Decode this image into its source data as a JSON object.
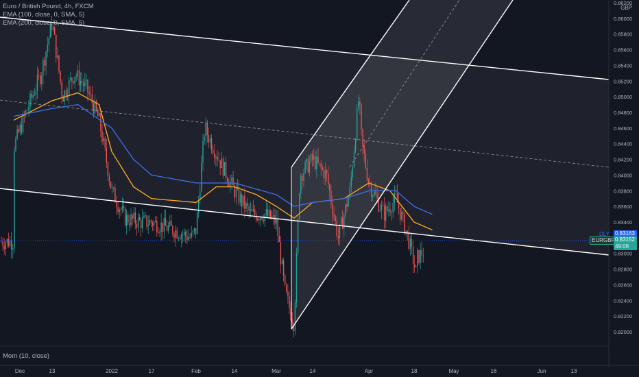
{
  "legend": {
    "symbol": "Euro / British Pound, 4h, FXCM",
    "ema100": "EMA (100, close, 0, SMA, 5)",
    "ema200": "EMA (200, close, 0, SMA, 5)"
  },
  "momentum_label": "Mom (10, close)",
  "currency_label": "GBP",
  "price_tags": {
    "dly_label": "DLY",
    "dly_price": "0.83163",
    "symbol": "EURGBP",
    "last_price": "0.83152",
    "countdown": "49:08"
  },
  "colors": {
    "background": "#131722",
    "ema100": "#f5a623",
    "ema200": "#3d6be0",
    "candle_up": "#26a69a",
    "candle_down": "#ef5350",
    "channel": "#ffffff",
    "last_price_line": "#2962ff"
  },
  "chart_data": {
    "type": "candlestick",
    "title": "Euro / British Pound, 4h, FXCM",
    "x_ticks": [
      "Dec",
      "13",
      "2022",
      "17",
      "Feb",
      "14",
      "Mar",
      "14",
      "Apr",
      "18",
      "May",
      "16",
      "Jun",
      "13"
    ],
    "y_ticks": [
      "0.86200",
      "0.86000",
      "0.85800",
      "0.85600",
      "0.85400",
      "0.85200",
      "0.85000",
      "0.84800",
      "0.84600",
      "0.84400",
      "0.84200",
      "0.84000",
      "0.83800",
      "0.83600",
      "0.83400",
      "0.83200",
      "0.83000",
      "0.82800",
      "0.82600",
      "0.82400",
      "0.82200",
      "0.82000"
    ],
    "ylim": [
      0.8195,
      0.8622
    ],
    "price_keypoints": [
      {
        "x": "Dec",
        "y": 0.8436
      },
      {
        "x": "Dec 6",
        "y": 0.849
      },
      {
        "x": "Dec 10",
        "y": 0.853
      },
      {
        "x": "13",
        "y": 0.8595
      },
      {
        "x": "Dec 17",
        "y": 0.85
      },
      {
        "x": "Dec 21",
        "y": 0.853
      },
      {
        "x": "Dec 25",
        "y": 0.851
      },
      {
        "x": "Dec 29",
        "y": 0.847
      },
      {
        "x": "2022",
        "y": 0.838
      },
      {
        "x": "Jan 7",
        "y": 0.8345
      },
      {
        "x": "Jan 12",
        "y": 0.834
      },
      {
        "x": "17",
        "y": 0.834
      },
      {
        "x": "Jan 24",
        "y": 0.833
      },
      {
        "x": "Jan 30",
        "y": 0.832
      },
      {
        "x": "Feb",
        "y": 0.833
      },
      {
        "x": "Feb 4",
        "y": 0.846
      },
      {
        "x": "Feb 9",
        "y": 0.842
      },
      {
        "x": "14",
        "y": 0.838
      },
      {
        "x": "Feb 20",
        "y": 0.835
      },
      {
        "x": "Feb 25",
        "y": 0.835
      },
      {
        "x": "Mar",
        "y": 0.834
      },
      {
        "x": "Mar 4",
        "y": 0.825
      },
      {
        "x": "Mar 7",
        "y": 0.821
      },
      {
        "x": "Mar 9",
        "y": 0.84
      },
      {
        "x": "14",
        "y": 0.842
      },
      {
        "x": "Mar 18",
        "y": 0.84
      },
      {
        "x": "Mar 22",
        "y": 0.832
      },
      {
        "x": "Mar 26",
        "y": 0.838
      },
      {
        "x": "Mar 29",
        "y": 0.85
      },
      {
        "x": "Mar 30",
        "y": 0.844
      },
      {
        "x": "Apr",
        "y": 0.839
      },
      {
        "x": "Apr 6",
        "y": 0.835
      },
      {
        "x": "Apr 10",
        "y": 0.837
      },
      {
        "x": "Apr 14",
        "y": 0.832
      },
      {
        "x": "Apr 17",
        "y": 0.827
      },
      {
        "x": "18",
        "y": 0.829
      },
      {
        "x": "Apr 22",
        "y": 0.8315
      }
    ],
    "series": [
      {
        "name": "EMA (100, close, 0, SMA, 5)",
        "values": [
          {
            "x": "Dec",
            "y": 0.847
          },
          {
            "x": "13",
            "y": 0.8495
          },
          {
            "x": "Dec 22",
            "y": 0.8505
          },
          {
            "x": "Dec 29",
            "y": 0.849
          },
          {
            "x": "2022",
            "y": 0.843
          },
          {
            "x": "Jan 10",
            "y": 0.8385
          },
          {
            "x": "17",
            "y": 0.837
          },
          {
            "x": "Feb",
            "y": 0.8365
          },
          {
            "x": "Feb 8",
            "y": 0.8385
          },
          {
            "x": "14",
            "y": 0.8385
          },
          {
            "x": "Feb 22",
            "y": 0.8375
          },
          {
            "x": "Mar",
            "y": 0.836
          },
          {
            "x": "Mar 7",
            "y": 0.8345
          },
          {
            "x": "14",
            "y": 0.8365
          },
          {
            "x": "Mar 24",
            "y": 0.837
          },
          {
            "x": "Apr",
            "y": 0.839
          },
          {
            "x": "Apr 8",
            "y": 0.838
          },
          {
            "x": "18",
            "y": 0.834
          },
          {
            "x": "Apr 22",
            "y": 0.833
          }
        ]
      },
      {
        "name": "EMA (200, close, 0, SMA, 5)",
        "values": [
          {
            "x": "Dec",
            "y": 0.8475
          },
          {
            "x": "13",
            "y": 0.8485
          },
          {
            "x": "Dec 22",
            "y": 0.849
          },
          {
            "x": "2022",
            "y": 0.846
          },
          {
            "x": "Jan 10",
            "y": 0.842
          },
          {
            "x": "17",
            "y": 0.84
          },
          {
            "x": "Feb",
            "y": 0.839
          },
          {
            "x": "14",
            "y": 0.839
          },
          {
            "x": "Mar",
            "y": 0.8375
          },
          {
            "x": "Mar 7",
            "y": 0.836
          },
          {
            "x": "14",
            "y": 0.8365
          },
          {
            "x": "Mar 24",
            "y": 0.837
          },
          {
            "x": "Apr",
            "y": 0.838
          },
          {
            "x": "Apr 10",
            "y": 0.838
          },
          {
            "x": "18",
            "y": 0.836
          },
          {
            "x": "Apr 22",
            "y": 0.835
          }
        ]
      }
    ],
    "last_price": 0.83152,
    "daily_price": 0.83163,
    "legend_position": "top-left",
    "grid": false
  }
}
